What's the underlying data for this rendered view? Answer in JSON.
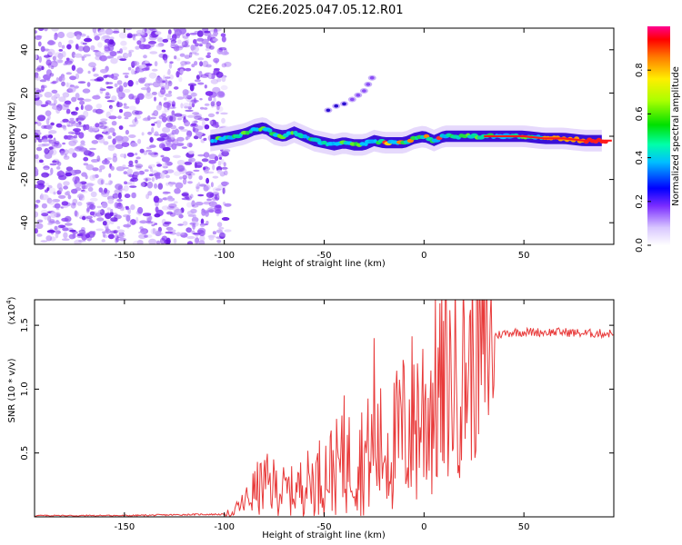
{
  "title": "C2E6.2025.047.05.12.R01",
  "chart_data": [
    {
      "type": "heatmap",
      "xlabel": "Height of straight line (km)",
      "ylabel": "Frequency (Hz)",
      "xlim": [
        -195,
        95
      ],
      "ylim": [
        -50,
        50
      ],
      "xticks": [
        -150,
        -100,
        -50,
        0,
        50
      ],
      "yticks": [
        -40,
        -20,
        0,
        20,
        40
      ],
      "noise_region_x": [
        -195,
        -100
      ],
      "main_trace": {
        "x": [
          -107,
          -100,
          -95,
          -90,
          -85,
          -80,
          -75,
          -70,
          -65,
          -60,
          -55,
          -50,
          -45,
          -40,
          -35,
          -30,
          -25,
          -20,
          -15,
          -10,
          -5,
          0,
          5,
          10,
          20,
          30,
          40,
          50,
          60,
          70,
          80,
          90
        ],
        "freq": [
          -2,
          -1,
          0,
          1,
          3,
          4,
          1,
          0,
          2,
          0,
          -2,
          -3,
          -4,
          -3,
          -4,
          -4,
          -2,
          -3,
          -3,
          -3,
          -1,
          0,
          -2,
          0,
          0,
          0,
          0,
          0,
          -1,
          -1,
          -2,
          -2
        ]
      },
      "secondary_trace": {
        "x": [
          -48,
          -44,
          -40,
          -36,
          -33,
          -30,
          -28,
          -26
        ],
        "freq": [
          12,
          14,
          15,
          17,
          19,
          21,
          24,
          27
        ]
      },
      "colorbar": {
        "label": "Normalized spectral amplitude",
        "range": [
          0,
          1
        ],
        "ticks": [
          0.0,
          0.2,
          0.4,
          0.6,
          0.8
        ],
        "tick_labels": [
          "0.0",
          "0.2",
          "0.4",
          "0.6",
          "0.8"
        ]
      }
    },
    {
      "type": "line",
      "xlabel": "Height of straight line (km)",
      "ylabel": "SNR (10 * v/v)",
      "y_multiplier_label": "(x10",
      "y_multiplier_exp": "4",
      "xlim": [
        -195,
        95
      ],
      "ylim": [
        0,
        1.7
      ],
      "xticks": [
        -150,
        -100,
        -50,
        0,
        50
      ],
      "yticks": [
        0.5,
        1.0,
        1.5
      ],
      "ytick_labels": [
        "0.5",
        "1.0",
        "1.5"
      ],
      "color": "#e83a3a",
      "series": [
        {
          "name": "SNR",
          "x": [
            -195,
            -150,
            -110,
            -100,
            -95,
            -90,
            -85,
            -80,
            -75,
            -70,
            -65,
            -60,
            -55,
            -50,
            -45,
            -40,
            -35,
            -30,
            -25,
            -20,
            -15,
            -10,
            -5,
            0,
            5,
            10,
            15,
            20,
            25,
            30,
            35,
            40,
            45,
            50,
            60,
            70,
            80,
            90,
            95
          ],
          "y": [
            0.01,
            0.01,
            0.02,
            0.02,
            0.05,
            0.12,
            0.22,
            0.28,
            0.26,
            0.22,
            0.22,
            0.28,
            0.32,
            0.38,
            0.42,
            0.45,
            0.5,
            0.52,
            0.55,
            0.6,
            0.62,
            0.75,
            0.85,
            0.92,
            1.0,
            1.1,
            1.15,
            1.2,
            1.3,
            1.38,
            1.42,
            1.44,
            1.45,
            1.45,
            1.45,
            1.45,
            1.44,
            1.44,
            1.44
          ]
        }
      ],
      "spikes": [
        {
          "x": -25,
          "y": 1.4
        },
        {
          "x": 10,
          "y": 1.7
        },
        {
          "x": -40,
          "y": 0.95
        },
        {
          "x": -15,
          "y": 1.05
        },
        {
          "x": 10,
          "y": 0.42
        }
      ]
    }
  ]
}
